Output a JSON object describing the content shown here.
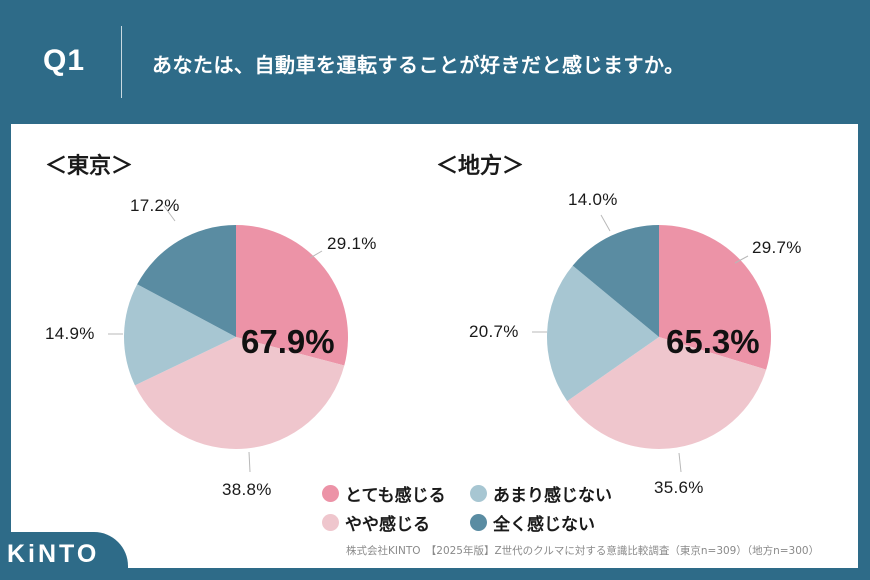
{
  "header": {
    "question_number": "Q1",
    "question_text": "あなたは、自動車を運転することが好きだと感じますか。"
  },
  "colors": {
    "background": "#2e6b88",
    "very_much": "#ec93a7",
    "somewhat": "#efc6cd",
    "not_much": "#a7c6d2",
    "not_at_all": "#5a8ca2"
  },
  "regions": {
    "tokyo": {
      "title": "＜東京＞",
      "center_total": "67.9%",
      "labels": [
        "29.1%",
        "38.8%",
        "14.9%",
        "17.2%"
      ]
    },
    "rural": {
      "title": "＜地方＞",
      "center_total": "65.3%",
      "labels": [
        "29.7%",
        "35.6%",
        "20.7%",
        "14.0%"
      ]
    }
  },
  "legend": {
    "items": [
      {
        "label": "とても感じる",
        "color": "#ec93a7"
      },
      {
        "label": "やや感じる",
        "color": "#efc6cd"
      },
      {
        "label": "あまり感じない",
        "color": "#a7c6d2"
      },
      {
        "label": "全く感じない",
        "color": "#5a8ca2"
      }
    ]
  },
  "footer": {
    "source": "株式会社KINTO　【2025年版】Z世代のクルマに対する意識比較調査（東京n=309）（地方n=300）",
    "logo": "KiNTO"
  },
  "chart_data": [
    {
      "type": "pie",
      "title": "＜東京＞",
      "categories": [
        "とても感じる",
        "やや感じる",
        "あまり感じない",
        "全く感じない"
      ],
      "values": [
        29.1,
        38.8,
        14.9,
        17.2
      ],
      "colors": [
        "#ec93a7",
        "#efc6cd",
        "#a7c6d2",
        "#5a8ca2"
      ],
      "annotation": "67.9%",
      "start_angle": "12 o'clock, clockwise",
      "legend_position": "bottom-center"
    },
    {
      "type": "pie",
      "title": "＜地方＞",
      "categories": [
        "とても感じる",
        "やや感じる",
        "あまり感じない",
        "全く感じない"
      ],
      "values": [
        29.7,
        35.6,
        20.7,
        14.0
      ],
      "colors": [
        "#ec93a7",
        "#efc6cd",
        "#a7c6d2",
        "#5a8ca2"
      ],
      "annotation": "65.3%",
      "start_angle": "12 o'clock, clockwise",
      "legend_position": "bottom-center"
    }
  ]
}
